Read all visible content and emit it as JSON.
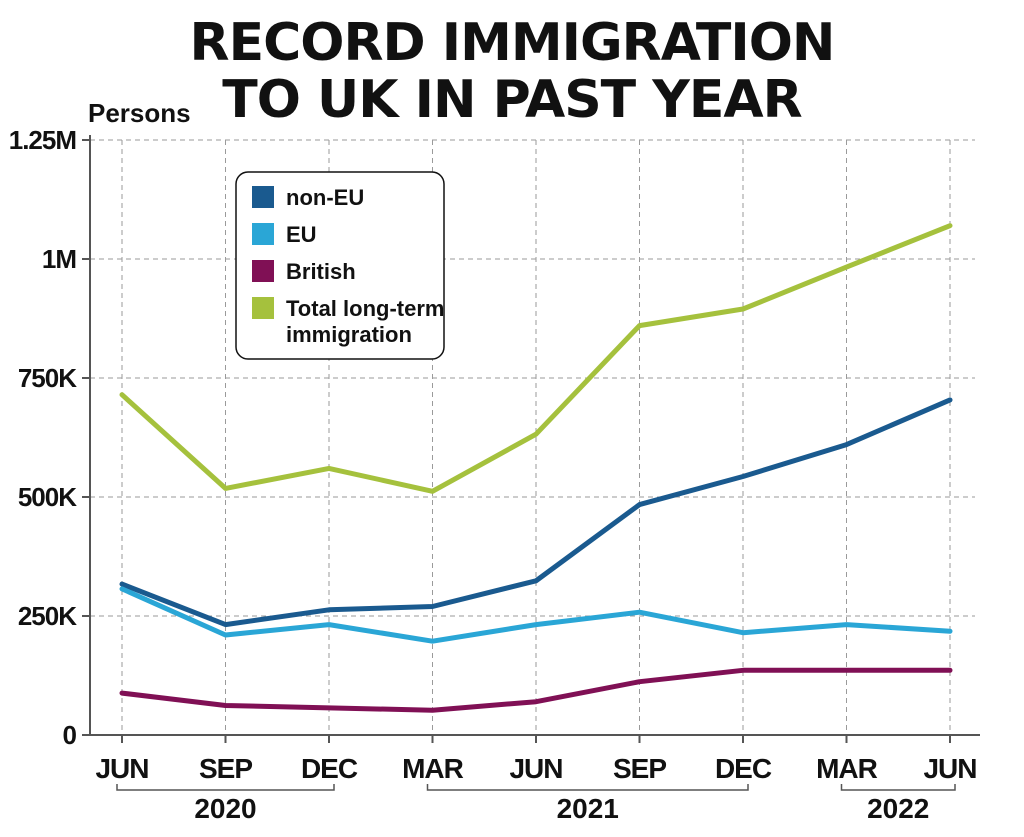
{
  "chart_data": {
    "type": "line",
    "title": [
      "RECORD IMMIGRATION",
      "TO UK IN PAST YEAR"
    ],
    "ylabel": "Persons",
    "ylim": [
      0,
      1250000
    ],
    "y_ticks": [
      {
        "value": 0,
        "label": "0"
      },
      {
        "value": 250000,
        "label": "250K"
      },
      {
        "value": 500000,
        "label": "500K"
      },
      {
        "value": 750000,
        "label": "750K"
      },
      {
        "value": 1000000,
        "label": "1M"
      },
      {
        "value": 1250000,
        "label": "1.25M"
      }
    ],
    "categories": [
      "JUN",
      "SEP",
      "DEC",
      "MAR",
      "JUN",
      "SEP",
      "DEC",
      "MAR",
      "JUN"
    ],
    "year_groups": [
      {
        "label": "2020",
        "from": 0,
        "to": 2
      },
      {
        "label": "2021",
        "from": 3,
        "to": 6
      },
      {
        "label": "2022",
        "from": 7,
        "to": 8
      }
    ],
    "grid": true,
    "legend_position": "top-left",
    "series": [
      {
        "name": "non-EU",
        "color": "#1a5a8f",
        "values": [
          317000,
          232000,
          263000,
          270000,
          324000,
          484000,
          543000,
          610000,
          704000
        ]
      },
      {
        "name": "EU",
        "color": "#2aa6d6",
        "values": [
          307000,
          210000,
          232000,
          197000,
          232000,
          258000,
          215000,
          232000,
          218000
        ]
      },
      {
        "name": "British",
        "color": "#801055",
        "values": [
          88000,
          62000,
          57000,
          52000,
          70000,
          112000,
          136000,
          136000,
          136000
        ]
      },
      {
        "name": "Total long-term immigration",
        "color": "#a5c13d",
        "values": [
          715000,
          518000,
          560000,
          512000,
          632000,
          860000,
          895000,
          983000,
          1070000
        ]
      }
    ]
  }
}
